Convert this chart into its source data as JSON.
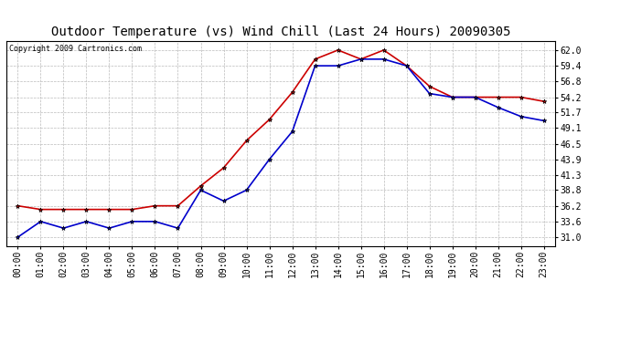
{
  "title": "Outdoor Temperature (vs) Wind Chill (Last 24 Hours) 20090305",
  "copyright": "Copyright 2009 Cartronics.com",
  "hours": [
    "00:00",
    "01:00",
    "02:00",
    "03:00",
    "04:00",
    "05:00",
    "06:00",
    "07:00",
    "08:00",
    "09:00",
    "10:00",
    "11:00",
    "12:00",
    "13:00",
    "14:00",
    "15:00",
    "16:00",
    "17:00",
    "18:00",
    "19:00",
    "20:00",
    "21:00",
    "22:00",
    "23:00"
  ],
  "temp": [
    36.2,
    35.6,
    35.6,
    35.6,
    35.6,
    35.6,
    36.2,
    36.2,
    39.5,
    42.5,
    47.0,
    50.5,
    55.0,
    60.5,
    62.0,
    60.5,
    62.0,
    59.4,
    56.0,
    54.2,
    54.2,
    54.2,
    54.2,
    53.5
  ],
  "wind_chill": [
    31.0,
    33.6,
    32.5,
    33.6,
    32.5,
    33.6,
    33.6,
    32.5,
    38.8,
    37.0,
    38.8,
    43.9,
    48.5,
    59.4,
    59.4,
    60.5,
    60.5,
    59.4,
    54.8,
    54.2,
    54.2,
    52.5,
    51.0,
    50.3
  ],
  "temp_color": "#cc0000",
  "wind_chill_color": "#0000cc",
  "marker": "*",
  "marker_color": "#000000",
  "yticks": [
    31.0,
    33.6,
    36.2,
    38.8,
    41.3,
    43.9,
    46.5,
    49.1,
    51.7,
    54.2,
    56.8,
    59.4,
    62.0
  ],
  "ymin": 29.5,
  "ymax": 63.5,
  "bg_color": "#ffffff",
  "plot_bg_color": "#ffffff",
  "grid_color": "#bbbbbb",
  "title_fontsize": 10,
  "copyright_fontsize": 6,
  "tick_fontsize": 7,
  "ytick_fontsize": 7
}
